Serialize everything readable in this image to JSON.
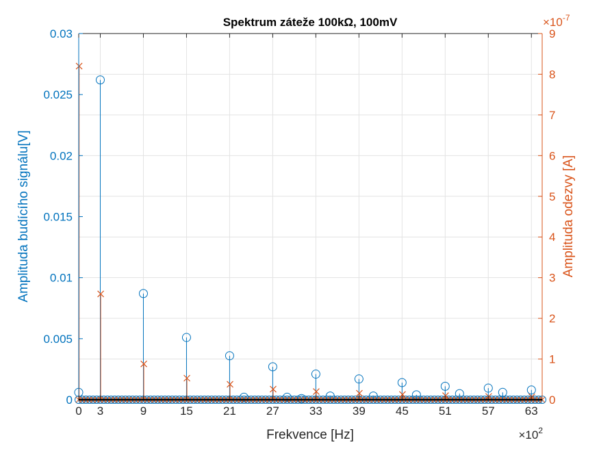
{
  "chart_data": {
    "type": "stem",
    "title": "Spektrum záteže 100kΩ, 100mV",
    "xlabel": "Frekvence [Hz]",
    "x_exponent": {
      "base": "×10",
      "power": "2"
    },
    "ylabel_left": "Amplituda budícího signálu[V]",
    "ylabel_right": "Amplituda odezvy [A]",
    "y_right_exponent": {
      "base": "×10",
      "power": "-7"
    },
    "xlim": [
      0,
      64.5
    ],
    "ylim_left": [
      0,
      0.03
    ],
    "ylim_right": [
      0,
      9
    ],
    "xticks": [
      "0",
      "3",
      "9",
      "15",
      "21",
      "27",
      "33",
      "39",
      "45",
      "51",
      "57",
      "63"
    ],
    "yticks_left": [
      "0",
      "0.005",
      "0.01",
      "0.015",
      "0.02",
      "0.025",
      "0.03"
    ],
    "yticks_right": [
      "0",
      "1",
      "2",
      "3",
      "4",
      "5",
      "6",
      "7",
      "8",
      "9"
    ],
    "grid": true,
    "colors": {
      "left": "#0072BD",
      "right": "#D95319"
    },
    "series": [
      {
        "marker": "o",
        "axis": "left",
        "x": [
          0,
          3,
          9,
          15,
          21,
          23,
          27,
          29,
          31,
          33,
          35,
          39,
          41,
          45,
          47,
          51,
          53,
          57,
          59,
          63
        ],
        "values": [
          0.0006,
          0.0262,
          0.0087,
          0.0051,
          0.0036,
          0.0002,
          0.0027,
          0.0002,
          0.0001,
          0.0021,
          0.0003,
          0.0017,
          0.0003,
          0.0014,
          0.0004,
          0.0011,
          0.0005,
          0.00095,
          0.0006,
          0.0008
        ]
      },
      {
        "marker": "x",
        "axis": "right",
        "x": [
          0,
          3,
          9,
          15,
          21,
          27,
          33,
          39,
          45,
          51,
          57,
          63
        ],
        "values": [
          8.2,
          2.6,
          0.88,
          0.53,
          0.38,
          0.26,
          0.2,
          0.16,
          0.13,
          0.1,
          0.08,
          0.07
        ]
      }
    ]
  }
}
